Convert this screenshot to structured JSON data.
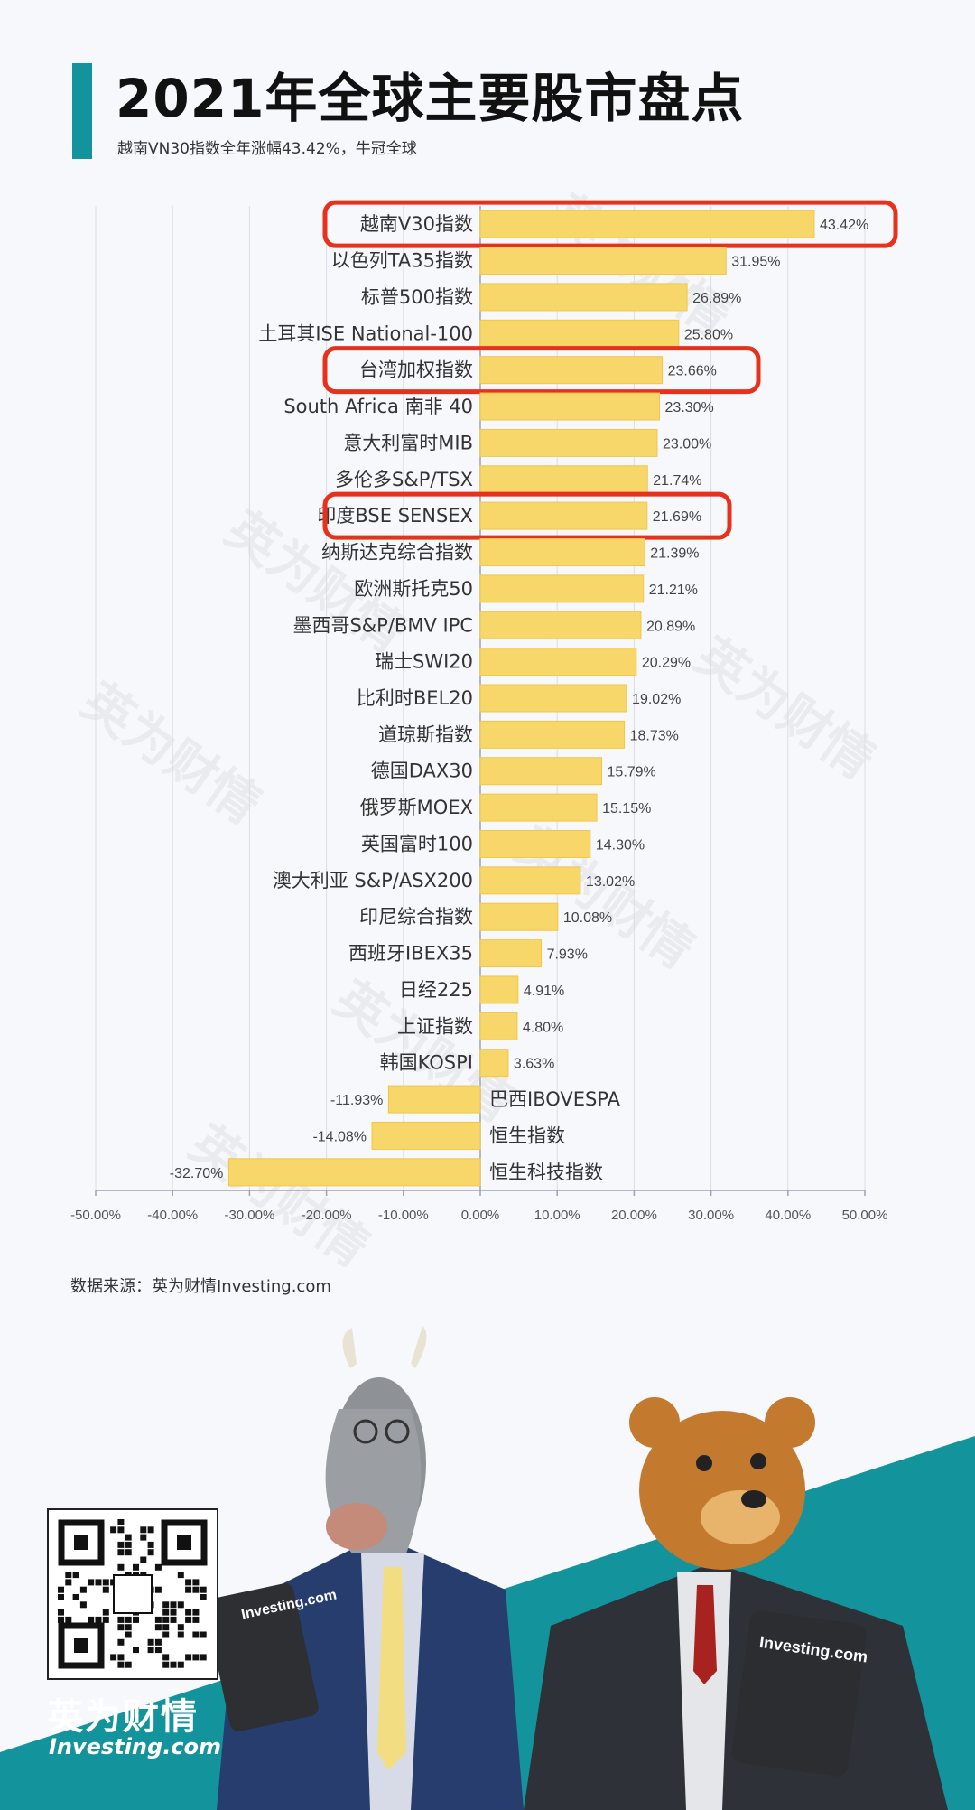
{
  "header": {
    "title": "2021年全球主要股市盘点",
    "subtitle": "越南VN30指数全年涨幅43.42%，牛冠全球"
  },
  "chart_data": {
    "type": "bar",
    "orientation": "horizontal",
    "categories": [
      "越南V30指数",
      "以色列TA35指数",
      "标普500指数",
      "土耳其ISE National-100",
      "台湾加权指数",
      "South Africa 南非 40",
      "意大利富时MIB",
      "多伦多S&P/TSX",
      "印度BSE SENSEX",
      "纳斯达克综合指数",
      "欧洲斯托克50",
      "墨西哥S&P/BMV IPC",
      "瑞士SWI20",
      "比利时BEL20",
      "道琼斯指数",
      "德国DAX30",
      "俄罗斯MOEX",
      "英国富时100",
      "澳大利亚 S&P/ASX200",
      "印尼综合指数",
      "西班牙IBEX35",
      "日经225",
      "上证指数",
      "韩国KOSPI",
      "巴西IBOVESPA",
      "恒生指数",
      "恒生科技指数"
    ],
    "values": [
      43.42,
      31.95,
      26.89,
      25.8,
      23.66,
      23.3,
      23.0,
      21.74,
      21.69,
      21.39,
      21.21,
      20.89,
      20.29,
      19.02,
      18.73,
      15.79,
      15.15,
      14.3,
      13.02,
      10.08,
      7.93,
      4.91,
      4.8,
      3.63,
      -11.93,
      -14.08,
      -32.7
    ],
    "value_labels": [
      "43.42%",
      "31.95%",
      "26.89%",
      "25.80%",
      "23.66%",
      "23.30%",
      "23.00%",
      "21.74%",
      "21.69%",
      "21.39%",
      "21.21%",
      "20.89%",
      "20.29%",
      "19.02%",
      "18.73%",
      "15.79%",
      "15.15%",
      "14.30%",
      "13.02%",
      "10.08%",
      "7.93%",
      "4.91%",
      "4.80%",
      "3.63%",
      "-11.93%",
      "-14.08%",
      "-32.70%"
    ],
    "xlim": [
      -50,
      50
    ],
    "x_ticks": [
      -50,
      -40,
      -30,
      -20,
      -10,
      0,
      10,
      20,
      30,
      40,
      50
    ],
    "x_tick_labels": [
      "-50.00%",
      "-40.00%",
      "-30.00%",
      "-20.00%",
      "-10.00%",
      "0.00%",
      "10.00%",
      "20.00%",
      "30.00%",
      "40.00%",
      "50.00%"
    ],
    "grid": true,
    "bar_color": "#f7d76a",
    "highlighted_categories": [
      "越南V30指数",
      "台湾加权指数",
      "印度BSE SENSEX"
    ],
    "highlight_color": "#e8311c"
  },
  "source": "数据来源：英为财情Investing.com",
  "branding": {
    "name_cn": "英为财情",
    "name_en": "Investing.com",
    "watermark": "英为财情",
    "watermark_en": "Investing.com",
    "tablet_logo": "Investing.com",
    "teal_color": "#13939b"
  }
}
